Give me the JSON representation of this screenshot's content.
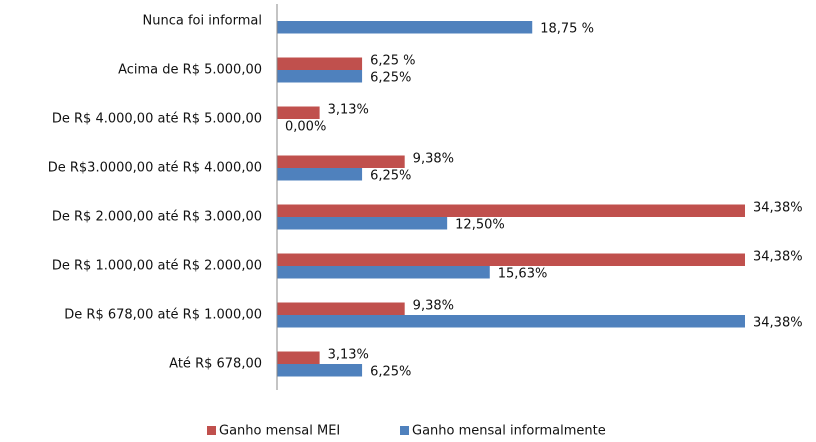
{
  "chart_data": {
    "type": "hbar",
    "categories": [
      "Nunca foi informal",
      "Acima de R$ 5.000,00",
      "De R$ 4.000,00 até R$ 5.000,00",
      "De R$3.0000,00 até R$ 4.000,00",
      "De R$ 2.000,00 até R$ 3.000,00",
      "De R$ 1.000,00 até R$ 2.000,00",
      "De R$ 678,00 até R$ 1.000,00",
      "Até  R$ 678,00"
    ],
    "series": [
      {
        "name": "Ganho mensal MEI",
        "color": "#c0504d",
        "values": [
          null,
          6.25,
          3.13,
          9.38,
          34.38,
          34.38,
          9.38,
          3.13
        ],
        "value_labels": [
          null,
          "6,25 %",
          "3,13%",
          "9,38%",
          "34,38%",
          "34,38%",
          "9,38%",
          "3,13%"
        ]
      },
      {
        "name": "Ganho mensal informalmente",
        "color": "#4f81bd",
        "values": [
          18.75,
          6.25,
          0,
          6.25,
          12.5,
          15.63,
          34.38,
          6.25
        ],
        "value_labels": [
          "18,75 %",
          "6,25%",
          "0,00%",
          "6,25%",
          "12,50%",
          "15,63%",
          "34,38%",
          "6,25%"
        ]
      }
    ],
    "legend": "bottom"
  }
}
